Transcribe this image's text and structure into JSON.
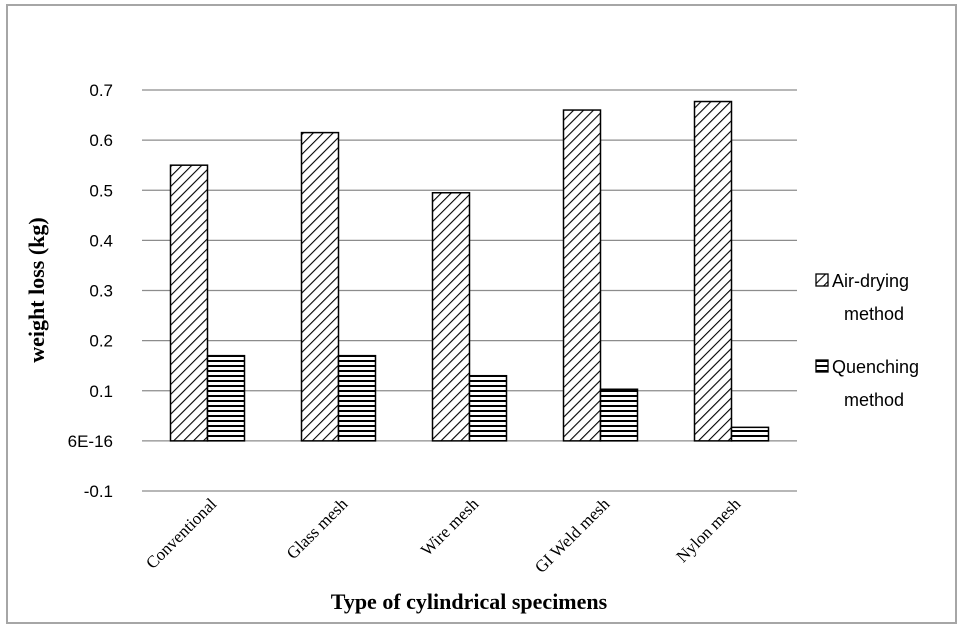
{
  "chart_data": {
    "type": "bar",
    "title": "",
    "xlabel": "Type of cylindrical specimens",
    "ylabel": "weight  loss (kg)",
    "categories": [
      "Conventional",
      "Glass mesh",
      "Wire  mesh",
      "GI Weld mesh",
      "Nylon mesh"
    ],
    "series": [
      {
        "name": "Air-drying method",
        "values": [
          0.55,
          0.615,
          0.495,
          0.66,
          0.677
        ],
        "pattern": "diagonal"
      },
      {
        "name": "Quenching method",
        "values": [
          0.17,
          0.17,
          0.13,
          0.103,
          0.027
        ],
        "pattern": "horizontal"
      }
    ],
    "ylim": [
      -0.1,
      0.7
    ],
    "yticks": [
      0.7,
      0.6,
      0.5,
      0.4,
      0.3,
      0.2,
      0.1,
      0.0,
      -0.1
    ],
    "ytick_labels": [
      "0.7",
      "0.6",
      "0.5",
      "0.4",
      "0.3",
      "0.2",
      "0.1",
      "6E-16",
      "-0.1"
    ],
    "grid": true,
    "legend_position": "right",
    "legend_labels": [
      [
        "Air-drying",
        "method"
      ],
      [
        "Quenching",
        "method"
      ]
    ],
    "colors": {
      "bar_fill": "#ffffff",
      "bar_stroke": "#000000",
      "grid": "#8c8c8c",
      "frame": "#a6a6a6"
    }
  }
}
